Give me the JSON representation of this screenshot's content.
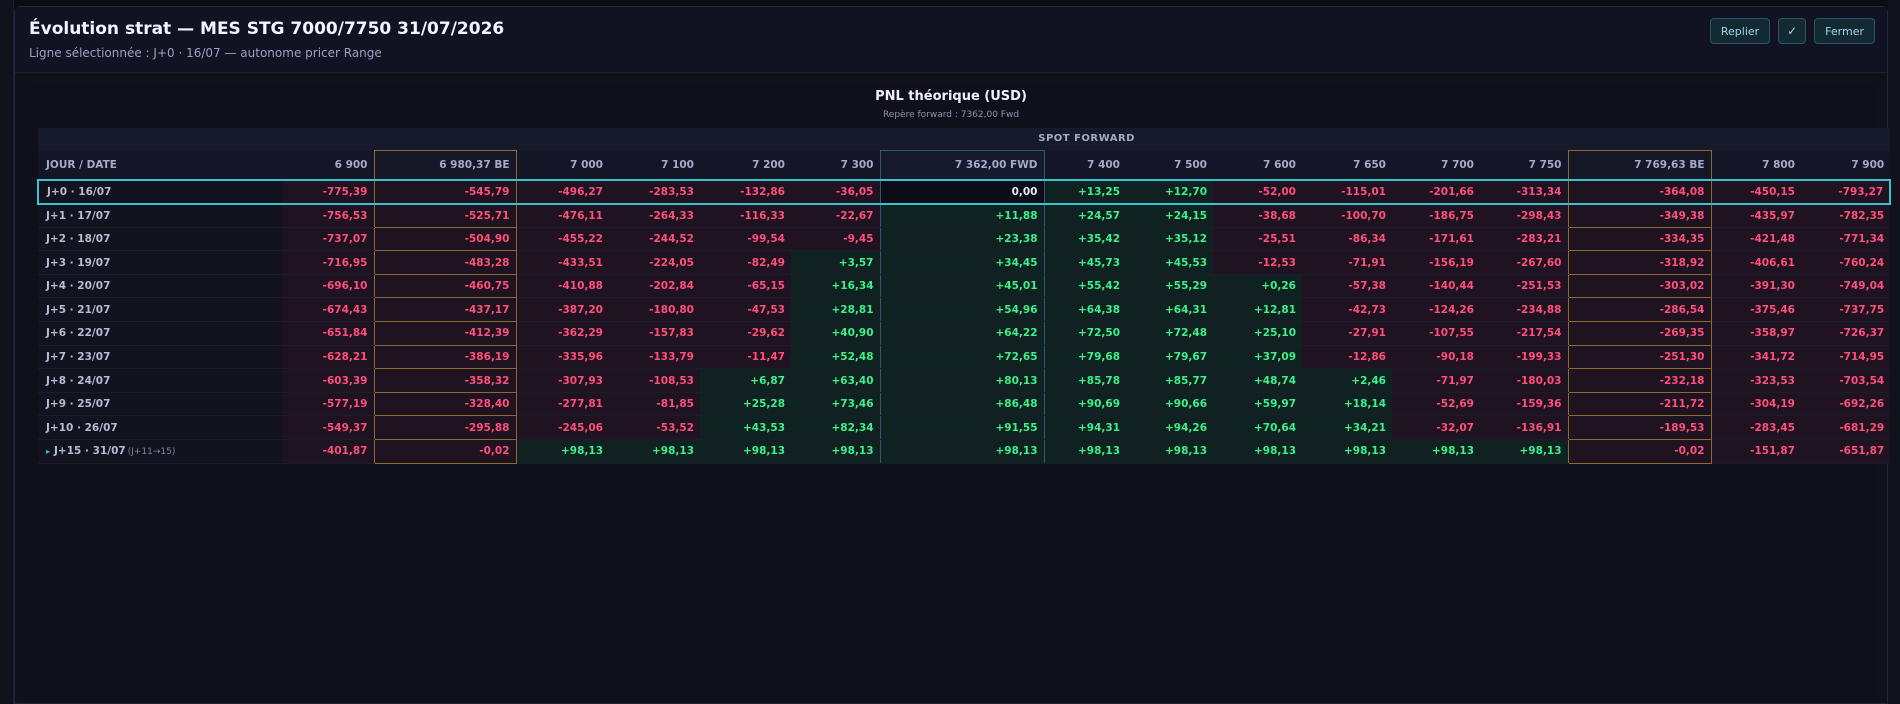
{
  "modal": {
    "title": "Évolution strat — MES STG 7000/7750 31/07/2026",
    "subtitle": "Ligne sélectionnée : J+0 · 16/07 — autonome pricer Range",
    "buttons": {
      "collapse": "Replier",
      "confirm": "✓",
      "close": "Fermer"
    }
  },
  "chart": {
    "title": "PNL théorique (USD)",
    "subtitle": "Repère forward : 7362,00 Fwd",
    "spot_header": "SPOT FORWARD",
    "first_col_header": "JOUR / DATE"
  },
  "colors": {
    "negative": "#ff4f7a",
    "positive": "#3ef08a",
    "selected_border": "#37c3d0",
    "breakeven_border": "#8a6a30",
    "forward_border": "#2d5b6e"
  },
  "chart_data": {
    "type": "table",
    "columns": [
      {
        "label": "6 900",
        "kind": ""
      },
      {
        "label": "6 980,37 BE",
        "kind": "be"
      },
      {
        "label": "7 000",
        "kind": ""
      },
      {
        "label": "7 100",
        "kind": ""
      },
      {
        "label": "7 200",
        "kind": ""
      },
      {
        "label": "7 300",
        "kind": ""
      },
      {
        "label": "7 362,00 FWD",
        "kind": "fwd"
      },
      {
        "label": "7 400",
        "kind": ""
      },
      {
        "label": "7 500",
        "kind": ""
      },
      {
        "label": "7 600",
        "kind": ""
      },
      {
        "label": "7 650",
        "kind": ""
      },
      {
        "label": "7 700",
        "kind": ""
      },
      {
        "label": "7 750",
        "kind": ""
      },
      {
        "label": "7 769,63 BE",
        "kind": "be"
      },
      {
        "label": "7 800",
        "kind": ""
      },
      {
        "label": "7 900",
        "kind": ""
      }
    ],
    "rows": [
      {
        "label": "J+0 · 16/07",
        "note": "",
        "selected": true,
        "values": [
          "-775,39",
          "-545,79",
          "-496,27",
          "-283,53",
          "-132,86",
          "-36,05",
          "0,00",
          "+13,25",
          "+12,70",
          "-52,00",
          "-115,01",
          "-201,66",
          "-313,34",
          "-364,08",
          "-450,15",
          "-793,27"
        ]
      },
      {
        "label": "J+1 · 17/07",
        "note": "",
        "values": [
          "-756,53",
          "-525,71",
          "-476,11",
          "-264,33",
          "-116,33",
          "-22,67",
          "+11,88",
          "+24,57",
          "+24,15",
          "-38,68",
          "-100,70",
          "-186,75",
          "-298,43",
          "-349,38",
          "-435,97",
          "-782,35"
        ]
      },
      {
        "label": "J+2 · 18/07",
        "note": "",
        "values": [
          "-737,07",
          "-504,90",
          "-455,22",
          "-244,52",
          "-99,54",
          "-9,45",
          "+23,38",
          "+35,42",
          "+35,12",
          "-25,51",
          "-86,34",
          "-171,61",
          "-283,21",
          "-334,35",
          "-421,48",
          "-771,34"
        ]
      },
      {
        "label": "J+3 · 19/07",
        "note": "",
        "values": [
          "-716,95",
          "-483,28",
          "-433,51",
          "-224,05",
          "-82,49",
          "+3,57",
          "+34,45",
          "+45,73",
          "+45,53",
          "-12,53",
          "-71,91",
          "-156,19",
          "-267,60",
          "-318,92",
          "-406,61",
          "-760,24"
        ]
      },
      {
        "label": "J+4 · 20/07",
        "note": "",
        "values": [
          "-696,10",
          "-460,75",
          "-410,88",
          "-202,84",
          "-65,15",
          "+16,34",
          "+45,01",
          "+55,42",
          "+55,29",
          "+0,26",
          "-57,38",
          "-140,44",
          "-251,53",
          "-303,02",
          "-391,30",
          "-749,04"
        ]
      },
      {
        "label": "J+5 · 21/07",
        "note": "",
        "values": [
          "-674,43",
          "-437,17",
          "-387,20",
          "-180,80",
          "-47,53",
          "+28,81",
          "+54,96",
          "+64,38",
          "+64,31",
          "+12,81",
          "-42,73",
          "-124,26",
          "-234,88",
          "-286,54",
          "-375,46",
          "-737,75"
        ]
      },
      {
        "label": "J+6 · 22/07",
        "note": "",
        "values": [
          "-651,84",
          "-412,39",
          "-362,29",
          "-157,83",
          "-29,62",
          "+40,90",
          "+64,22",
          "+72,50",
          "+72,48",
          "+25,10",
          "-27,91",
          "-107,55",
          "-217,54",
          "-269,35",
          "-358,97",
          "-726,37"
        ]
      },
      {
        "label": "J+7 · 23/07",
        "note": "",
        "values": [
          "-628,21",
          "-386,19",
          "-335,96",
          "-133,79",
          "-11,47",
          "+52,48",
          "+72,65",
          "+79,68",
          "+79,67",
          "+37,09",
          "-12,86",
          "-90,18",
          "-199,33",
          "-251,30",
          "-341,72",
          "-714,95"
        ]
      },
      {
        "label": "J+8 · 24/07",
        "note": "",
        "values": [
          "-603,39",
          "-358,32",
          "-307,93",
          "-108,53",
          "+6,87",
          "+63,40",
          "+80,13",
          "+85,78",
          "+85,77",
          "+48,74",
          "+2,46",
          "-71,97",
          "-180,03",
          "-232,18",
          "-323,53",
          "-703,54"
        ]
      },
      {
        "label": "J+9 · 25/07",
        "note": "",
        "values": [
          "-577,19",
          "-328,40",
          "-277,81",
          "-81,85",
          "+25,28",
          "+73,46",
          "+86,48",
          "+90,69",
          "+90,66",
          "+59,97",
          "+18,14",
          "-52,69",
          "-159,36",
          "-211,72",
          "-304,19",
          "-692,26"
        ]
      },
      {
        "label": "J+10 · 26/07",
        "note": "",
        "values": [
          "-549,37",
          "-295,88",
          "-245,06",
          "-53,52",
          "+43,53",
          "+82,34",
          "+91,55",
          "+94,31",
          "+94,26",
          "+70,64",
          "+34,21",
          "-32,07",
          "-136,91",
          "-189,53",
          "-283,45",
          "-681,29"
        ]
      },
      {
        "label": "J+15 · 31/07",
        "note": "(J+11→15)",
        "expandable": true,
        "values": [
          "-401,87",
          "-0,02",
          "+98,13",
          "+98,13",
          "+98,13",
          "+98,13",
          "+98,13",
          "+98,13",
          "+98,13",
          "+98,13",
          "+98,13",
          "+98,13",
          "+98,13",
          "-0,02",
          "-151,87",
          "-651,87"
        ]
      }
    ]
  }
}
